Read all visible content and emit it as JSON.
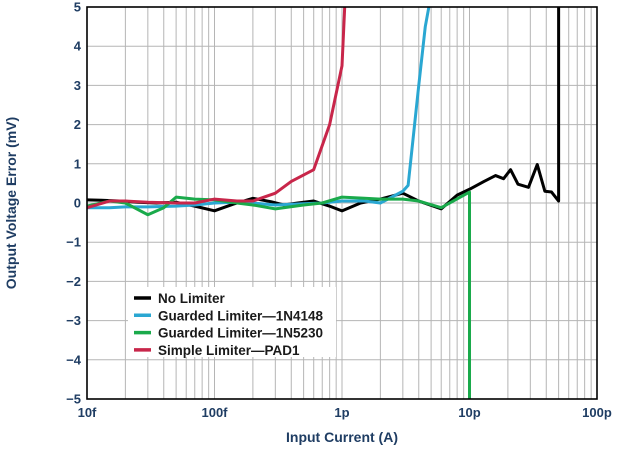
{
  "chart_data": {
    "type": "line",
    "title": "",
    "xlabel": "Input Current (A)",
    "ylabel": "Output Voltage Error (mV)",
    "x_scale": "log",
    "xlim": [
      1e-14,
      1e-10
    ],
    "ylim": [
      -5,
      5
    ],
    "grid": true,
    "legend_position": "bottom-left",
    "x_ticks": [
      {
        "value": 1e-14,
        "label": "10f"
      },
      {
        "value": 1e-13,
        "label": "100f"
      },
      {
        "value": 1e-12,
        "label": "1p"
      },
      {
        "value": 1e-11,
        "label": "10p"
      },
      {
        "value": 1e-10,
        "label": "100p"
      }
    ],
    "y_ticks": [
      5,
      4,
      3,
      2,
      1,
      0,
      -1,
      -2,
      -3,
      -4,
      -5
    ],
    "series": [
      {
        "name": "No Limiter",
        "color": "#000000",
        "points": [
          [
            1e-14,
            0.08
          ],
          [
            1.3e-14,
            0.07
          ],
          [
            1.8e-14,
            0.05
          ],
          [
            2.5e-14,
            0.02
          ],
          [
            3.5e-14,
            0.0
          ],
          [
            5e-14,
            0.02
          ],
          [
            7e-14,
            -0.08
          ],
          [
            1e-13,
            -0.2
          ],
          [
            1.4e-13,
            -0.03
          ],
          [
            2e-13,
            0.12
          ],
          [
            2.8e-13,
            0.03
          ],
          [
            3.5e-13,
            -0.05
          ],
          [
            4.5e-13,
            0.0
          ],
          [
            6e-13,
            0.05
          ],
          [
            8e-13,
            -0.08
          ],
          [
            1e-12,
            -0.2
          ],
          [
            1.4e-12,
            0.0
          ],
          [
            2e-12,
            0.1
          ],
          [
            3e-12,
            0.25
          ],
          [
            4e-12,
            0.05
          ],
          [
            6e-12,
            -0.15
          ],
          [
            8e-12,
            0.2
          ],
          [
            1e-11,
            0.35
          ],
          [
            1.3e-11,
            0.55
          ],
          [
            1.6e-11,
            0.7
          ],
          [
            1.85e-11,
            0.62
          ],
          [
            2.1e-11,
            0.85
          ],
          [
            2.4e-11,
            0.48
          ],
          [
            2.9e-11,
            0.4
          ],
          [
            3.4e-11,
            0.98
          ],
          [
            3.9e-11,
            0.3
          ],
          [
            4.4e-11,
            0.28
          ],
          [
            5e-11,
            0.05
          ],
          [
            5e-11,
            5
          ]
        ]
      },
      {
        "name": "Guarded Limiter—1N4148",
        "color": "#2aa7d2",
        "points": [
          [
            1e-14,
            -0.12
          ],
          [
            1.5e-14,
            -0.12
          ],
          [
            2e-14,
            -0.1
          ],
          [
            3e-14,
            -0.1
          ],
          [
            5e-14,
            -0.08
          ],
          [
            7e-14,
            -0.05
          ],
          [
            1e-13,
            0.0
          ],
          [
            1.5e-13,
            0.02
          ],
          [
            2e-13,
            0.0
          ],
          [
            3e-13,
            -0.05
          ],
          [
            5e-13,
            -0.02
          ],
          [
            7e-13,
            0.0
          ],
          [
            1e-12,
            0.05
          ],
          [
            1.5e-12,
            0.05
          ],
          [
            2e-12,
            0.0
          ],
          [
            3e-12,
            0.3
          ],
          [
            3.3e-12,
            0.45
          ],
          [
            4e-12,
            3.0
          ],
          [
            4.5e-12,
            4.5
          ],
          [
            4.8e-12,
            5
          ]
        ]
      },
      {
        "name": "Guarded Limiter—1N5230",
        "color": "#1aaa4b",
        "points": [
          [
            1e-14,
            -0.08
          ],
          [
            1.5e-14,
            0.05
          ],
          [
            2e-14,
            0.0
          ],
          [
            3e-14,
            -0.3
          ],
          [
            4e-14,
            -0.12
          ],
          [
            5e-14,
            0.15
          ],
          [
            7e-14,
            0.1
          ],
          [
            1e-13,
            0.08
          ],
          [
            1.5e-13,
            0.0
          ],
          [
            2e-13,
            -0.05
          ],
          [
            3e-13,
            -0.15
          ],
          [
            5e-13,
            -0.05
          ],
          [
            7e-13,
            0.0
          ],
          [
            1e-12,
            0.15
          ],
          [
            1.5e-12,
            0.12
          ],
          [
            2e-12,
            0.1
          ],
          [
            3e-12,
            0.1
          ],
          [
            4e-12,
            0.05
          ],
          [
            6e-12,
            -0.12
          ],
          [
            1e-11,
            0.28
          ],
          [
            1e-11,
            -5
          ]
        ]
      },
      {
        "name": "Simple Limiter—PAD1",
        "color": "#c8264a",
        "points": [
          [
            1e-14,
            -0.12
          ],
          [
            1.5e-14,
            0.05
          ],
          [
            2e-14,
            0.05
          ],
          [
            3e-14,
            0.02
          ],
          [
            5e-14,
            0.0
          ],
          [
            7e-14,
            0.0
          ],
          [
            1e-13,
            0.1
          ],
          [
            1.5e-13,
            0.05
          ],
          [
            2e-13,
            0.05
          ],
          [
            3e-13,
            0.25
          ],
          [
            4e-13,
            0.55
          ],
          [
            6e-13,
            0.85
          ],
          [
            8e-13,
            2.0
          ],
          [
            1e-12,
            3.5
          ],
          [
            1.05e-12,
            5
          ]
        ]
      }
    ]
  }
}
